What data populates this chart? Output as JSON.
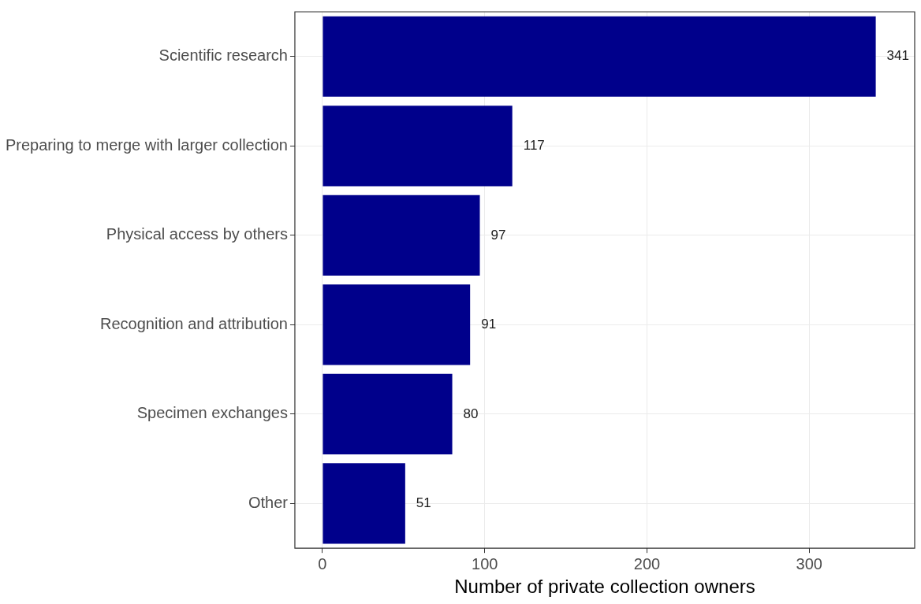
{
  "chart_data": {
    "type": "bar",
    "orientation": "horizontal",
    "xlabel": "Number of private collection owners",
    "categories": [
      "Scientific research",
      "Preparing to merge with larger collection",
      "Physical access by others",
      "Recognition and attribution",
      "Specimen exchanges",
      "Other"
    ],
    "values": [
      341,
      117,
      97,
      91,
      80,
      51
    ],
    "color": "#00008b",
    "data_labels": true,
    "xlim": [
      -17,
      365
    ],
    "xticks": [
      0,
      100,
      200,
      300
    ],
    "grid": true,
    "legend": false
  }
}
